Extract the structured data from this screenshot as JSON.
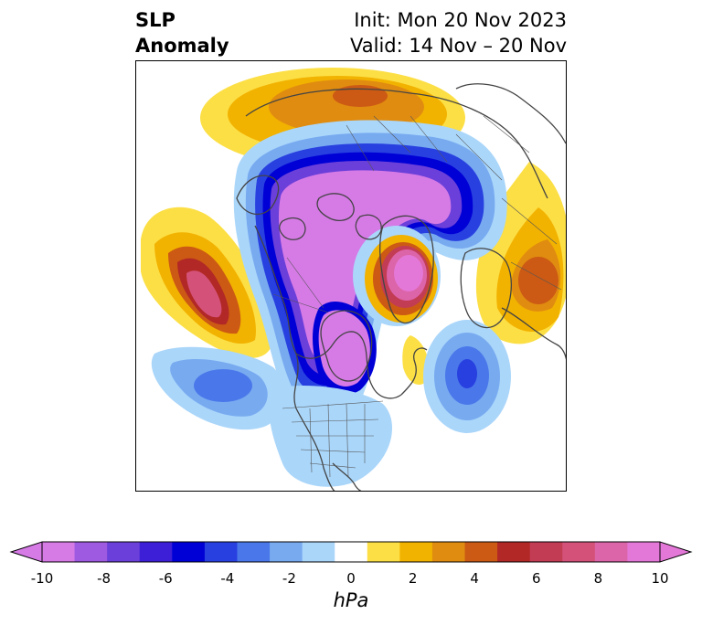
{
  "title": {
    "left_line1": "SLP",
    "left_line2": "Anomaly",
    "right_line1": "Init: Mon 20 Nov 2023",
    "right_line2": "Valid: 14 Nov – 20 Nov"
  },
  "colorbar": {
    "label": "hPa",
    "ticks": [
      "-10",
      "-8",
      "-6",
      "-4",
      "-2",
      "0",
      "2",
      "4",
      "6",
      "8",
      "10"
    ],
    "colors": [
      "#d67ae6",
      "#9e5ae0",
      "#6b3fd9",
      "#3c1fd6",
      "#0000d6",
      "#2840e0",
      "#4a78ea",
      "#78aaf0",
      "#aad6fa",
      "#ffffff",
      "#fcdf45",
      "#f2b200",
      "#e08c10",
      "#cc5a14",
      "#b22826",
      "#c23c54",
      "#d4527a",
      "#dc64a8",
      "#e478d8"
    ],
    "min_extend_color": "#d67ae6",
    "max_extend_color": "#e478d8"
  },
  "map": {
    "projection": "polar-stereographic",
    "features": [
      "coastlines",
      "country-borders",
      "us-state-borders"
    ]
  }
}
